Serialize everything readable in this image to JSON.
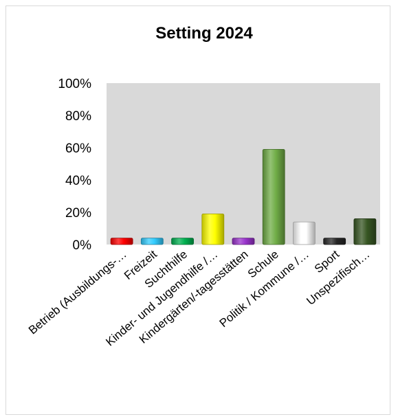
{
  "chart_data": {
    "type": "bar",
    "title": "Setting 2024",
    "xlabel": "",
    "ylabel": "",
    "ylim": [
      0,
      100
    ],
    "y_ticks": [
      "0%",
      "20%",
      "40%",
      "60%",
      "80%",
      "100%"
    ],
    "y_tick_values": [
      0,
      20,
      40,
      60,
      80,
      100
    ],
    "grid": false,
    "legend": "none",
    "plot_background": "#d9d9d9",
    "categories": [
      "Betrieb (Ausbildungs-…",
      "Freizeit",
      "Suchthilfe",
      "Kinder- und Jugendhilfe /…",
      "Kindergärten/-tagesstätten",
      "Schule",
      "Politik / Kommune /…",
      "Sport",
      "Unspezifisch…"
    ],
    "values": [
      4,
      4,
      4,
      19,
      4,
      59,
      14,
      4,
      16
    ],
    "colors": [
      "#ff0000",
      "#33ccff",
      "#00b050",
      "#ffff00",
      "#9933cc",
      "#70ad47",
      "#ffffff",
      "#262626",
      "#375623"
    ]
  }
}
